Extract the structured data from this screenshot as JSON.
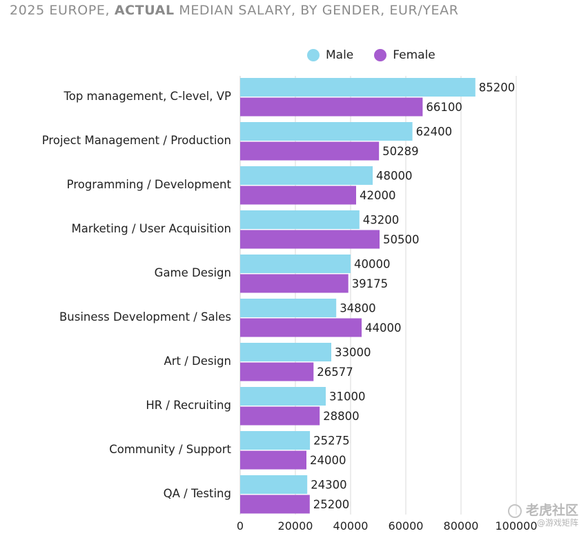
{
  "title": {
    "prefix": "2025 EUROPE, ",
    "emphasis": "ACTUAL",
    "suffix": " MEDIAN SALARY, BY GENDER, EUR/YEAR"
  },
  "watermark": {
    "main": "老虎社区",
    "sub": "@游戏矩阵"
  },
  "chart_data": {
    "type": "bar",
    "orientation": "horizontal",
    "title": "2025 EUROPE, ACTUAL MEDIAN SALARY, BY GENDER, EUR/YEAR",
    "categories": [
      "Top management, C-level, VP",
      "Project Management / Production",
      "Programming / Development",
      "Marketing / User Acquisition",
      "Game Design",
      "Business Development / Sales",
      "Art / Design",
      "HR / Recruiting",
      "Community / Support",
      "QA / Testing"
    ],
    "series": [
      {
        "name": "Male",
        "color": "#8ed8ee",
        "values": [
          85200,
          62400,
          48000,
          43200,
          40000,
          34800,
          33000,
          31000,
          25275,
          24300
        ]
      },
      {
        "name": "Female",
        "color": "#a65ccf",
        "values": [
          66100,
          50289,
          42000,
          50500,
          39175,
          44000,
          26577,
          28800,
          24000,
          25200
        ]
      }
    ],
    "x_ticks": [
      "0",
      "20000",
      "40000",
      "60000",
      "80000",
      "100000"
    ],
    "xlim": [
      0,
      100000
    ],
    "grid": true,
    "legend": "top"
  }
}
